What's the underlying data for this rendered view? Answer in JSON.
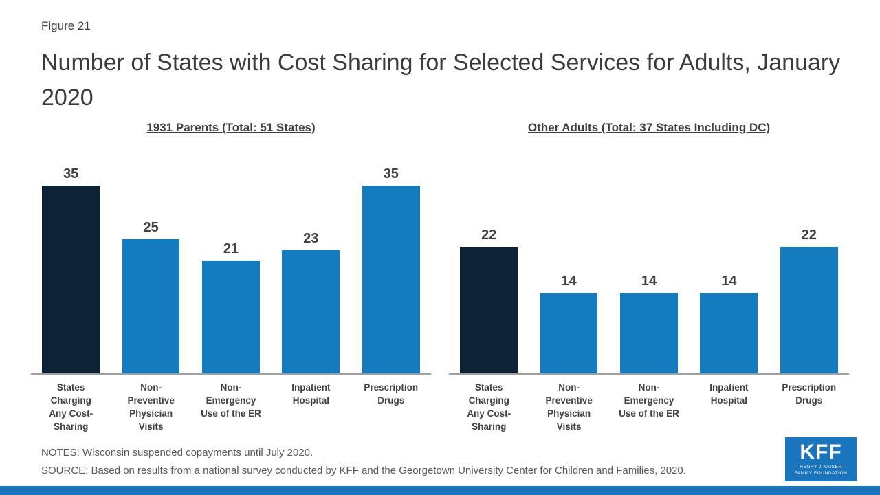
{
  "figure_label": "Figure 21",
  "title": "Number of States with Cost Sharing for Selected Services for Adults, January 2020",
  "notes": "NOTES: Wisconsin suspended copayments until July 2020.",
  "source": "SOURCE: Based on results from a national survey conducted by KFF and the Georgetown University Center for Children and Families, 2020.",
  "logo": {
    "text": "KFF",
    "subtext_line1": "HENRY J KAISER",
    "subtext_line2": "FAMILY FOUNDATION"
  },
  "colors": {
    "navy": "#0d2335",
    "blue": "#147bbf",
    "logo_blue": "#1b75bc"
  },
  "chart_data": {
    "type": "bar",
    "categories": [
      "States\nCharging\nAny Cost-\nSharing",
      "Non-\nPreventive\nPhysician\nVisits",
      "Non-\nEmergency\nUse of the ER",
      "Inpatient\nHospital",
      "Prescription\nDrugs"
    ],
    "panels": [
      {
        "title": "1931 Parents (Total: 51 States)",
        "values": [
          35,
          25,
          21,
          23,
          35
        ]
      },
      {
        "title": "Other Adults (Total: 37 States Including DC)",
        "values": [
          22,
          14,
          14,
          14,
          22
        ]
      }
    ],
    "ylim": [
      0,
      38
    ],
    "grid": false,
    "legend": "none",
    "bar_color_first": "#0d2335",
    "bar_color_rest": "#147bbf"
  }
}
